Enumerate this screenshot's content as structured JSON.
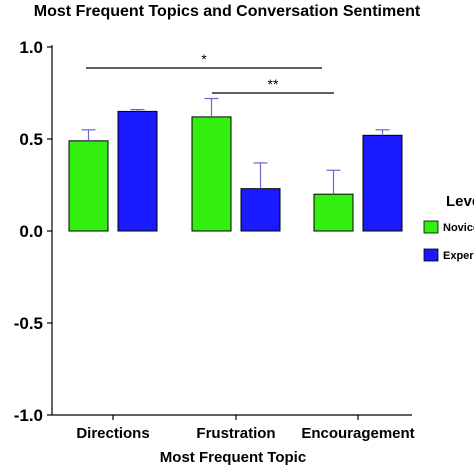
{
  "chart_data": {
    "type": "bar",
    "title": "Most Frequent Topics and Conversation Sentiment",
    "xlabel": "Most Frequent Topic",
    "ylabel": "",
    "ylim": [
      -1.0,
      1.0
    ],
    "yticks": [
      "1.0",
      "0.5",
      "0.0",
      "-0.5",
      "-1.0"
    ],
    "categories": [
      "Directions",
      "Frustration",
      "Encouragement"
    ],
    "series": [
      {
        "name": "Novice",
        "color": "#33ee11",
        "values": [
          0.49,
          0.62,
          0.2
        ],
        "errors": [
          0.06,
          0.1,
          0.13
        ]
      },
      {
        "name": "Experienced",
        "color": "#1a1aff",
        "values": [
          0.65,
          0.23,
          0.52
        ],
        "errors": [
          0.01,
          0.14,
          0.03
        ]
      }
    ],
    "legend": {
      "title": "Level",
      "placement": "right"
    },
    "significance": [
      {
        "label": "*",
        "from": "Directions",
        "to": "Encouragement"
      },
      {
        "label": "**",
        "from": "Frustration",
        "to": "Encouragement"
      }
    ],
    "grid": false
  }
}
